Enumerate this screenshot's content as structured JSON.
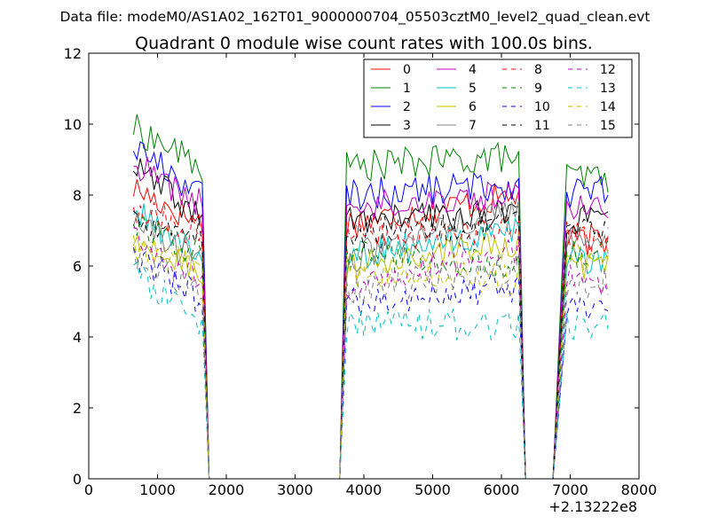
{
  "chart_data": {
    "type": "line",
    "suptitle": "Data file: modeM0/AS1A02_162T01_9000000704_05503cztM0_level2_quad_clean.evt",
    "title": "Quadrant 0 module wise count rates with 100.0s bins.",
    "xlabel": "",
    "ylabel": "",
    "xlim": [
      0,
      8000
    ],
    "ylim": [
      0,
      12
    ],
    "x_offset_label": "+2.13222e8",
    "x_ticks": [
      0,
      1000,
      2000,
      3000,
      4000,
      5000,
      6000,
      7000,
      8000
    ],
    "y_ticks": [
      0,
      2,
      4,
      6,
      8,
      10,
      12
    ],
    "grid": false,
    "legend_placement": "upper-right",
    "legend_columns": 4,
    "segments": [
      {
        "start": 650,
        "end": 1650,
        "pre_zero": null,
        "post_zero": 1750
      },
      {
        "start": 3750,
        "end": 6250,
        "pre_zero": 3650,
        "post_zero": 6350
      },
      {
        "start": 6950,
        "end": 7550,
        "pre_zero": 6750,
        "post_zero": null
      }
    ],
    "series": [
      {
        "name": "0",
        "color": "#ff0000",
        "dash": "solid",
        "levels": [
          8.2,
          7.2,
          8.0,
          6.7
        ]
      },
      {
        "name": "1",
        "color": "#008000",
        "dash": "solid",
        "levels": [
          9.9,
          8.8,
          9.1,
          8.5
        ]
      },
      {
        "name": "2",
        "color": "#0000ff",
        "dash": "solid",
        "levels": [
          9.4,
          8.0,
          8.3,
          8.1
        ]
      },
      {
        "name": "3",
        "color": "#000000",
        "dash": "solid",
        "levels": [
          8.8,
          7.3,
          7.5,
          7.3
        ]
      },
      {
        "name": "4",
        "color": "#bf00bf",
        "dash": "solid",
        "levels": [
          8.9,
          7.7,
          8.0,
          7.7
        ]
      },
      {
        "name": "5",
        "color": "#00bfbf",
        "dash": "solid",
        "levels": [
          7.5,
          6.3,
          6.9,
          6.2
        ]
      },
      {
        "name": "6",
        "color": "#bfbf00",
        "dash": "solid",
        "levels": [
          6.6,
          5.9,
          6.7,
          6.0
        ]
      },
      {
        "name": "7",
        "color": "#808080",
        "dash": "solid",
        "levels": [
          7.1,
          6.2,
          7.6,
          6.6
        ]
      },
      {
        "name": "8",
        "color": "#ff0000",
        "dash": "dashed",
        "levels": [
          7.6,
          6.9,
          7.0,
          6.8
        ]
      },
      {
        "name": "9",
        "color": "#008000",
        "dash": "dashed",
        "levels": [
          7.1,
          6.3,
          6.0,
          6.3
        ]
      },
      {
        "name": "10",
        "color": "#0000ff",
        "dash": "dashed",
        "levels": [
          6.4,
          5.0,
          5.4,
          4.9
        ]
      },
      {
        "name": "11",
        "color": "#000000",
        "dash": "dashed",
        "levels": [
          7.4,
          6.9,
          7.2,
          6.9
        ]
      },
      {
        "name": "12",
        "color": "#bf00bf",
        "dash": "dashed",
        "levels": [
          6.9,
          5.4,
          6.5,
          5.6
        ]
      },
      {
        "name": "13",
        "color": "#00bfbf",
        "dash": "dashed",
        "levels": [
          5.8,
          4.4,
          4.3,
          4.3
        ]
      },
      {
        "name": "14",
        "color": "#bfbf00",
        "dash": "dashed",
        "levels": [
          6.6,
          5.9,
          5.6,
          6.2
        ]
      },
      {
        "name": "15",
        "color": "#808080",
        "dash": "dashed",
        "levels": [
          6.2,
          5.3,
          5.9,
          5.5
        ]
      }
    ]
  }
}
